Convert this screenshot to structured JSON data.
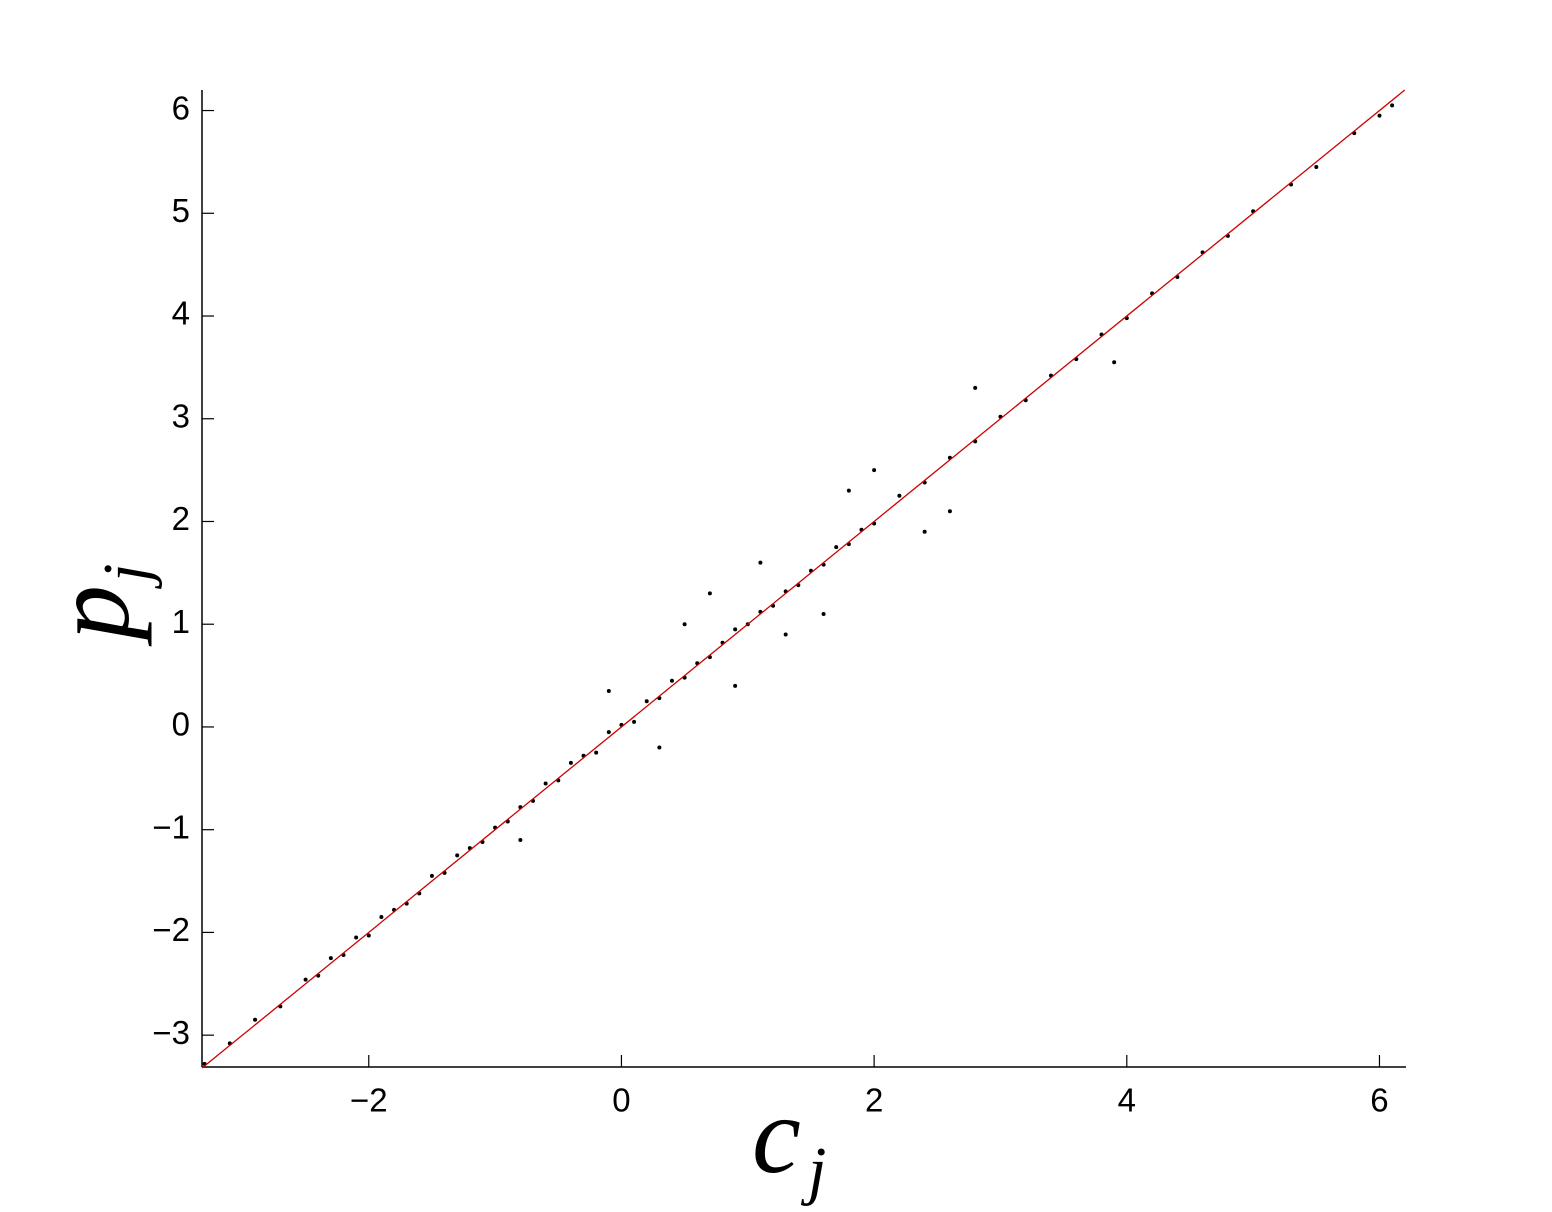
{
  "chart_data": {
    "type": "scatter",
    "xlabel": {
      "main": "c",
      "sub": "j"
    },
    "ylabel": {
      "main": "p",
      "sub": "j"
    },
    "xlim": [
      -3.32,
      6.21
    ],
    "ylim": [
      -3.31,
      6.2
    ],
    "xticks": [
      {
        "value": -2,
        "label": "−2"
      },
      0,
      2,
      4,
      6
    ],
    "yticks": [
      {
        "value": -3,
        "label": "−3"
      },
      {
        "value": -2,
        "label": "−2"
      },
      {
        "value": -1,
        "label": "−1"
      },
      0,
      1,
      2,
      3,
      4,
      5,
      6
    ],
    "grid": false,
    "series": [
      {
        "color": "#000000",
        "x": [
          -3.3,
          -3.1,
          -2.9,
          -2.7,
          -2.5,
          -2.4,
          -2.3,
          -2.2,
          -2.1,
          -2.0,
          -1.9,
          -1.8,
          -1.7,
          -1.6,
          -1.5,
          -1.4,
          -1.3,
          -1.2,
          -1.1,
          -1.0,
          -0.9,
          -0.8,
          -0.7,
          -0.6,
          -0.5,
          -0.4,
          -0.3,
          -0.2,
          -0.1,
          0.0,
          0.1,
          0.2,
          0.3,
          0.4,
          0.5,
          0.6,
          0.7,
          0.8,
          0.9,
          1.0,
          1.1,
          1.2,
          1.3,
          1.4,
          1.5,
          1.6,
          1.7,
          1.8,
          1.9,
          2.0,
          2.2,
          2.4,
          2.6,
          2.8,
          3.0,
          3.2,
          3.4,
          3.6,
          3.8,
          4.0,
          4.2,
          4.4,
          4.6,
          4.8,
          5.0,
          5.3,
          5.5,
          5.8,
          6.0,
          6.1,
          0.5,
          0.9,
          1.1,
          1.6,
          2.0,
          2.4,
          0.3,
          -0.1,
          2.8,
          1.3,
          0.7,
          3.9,
          -0.8,
          1.8,
          2.6
        ],
        "values": [
          -3.28,
          -3.08,
          -2.85,
          -2.72,
          -2.46,
          -2.42,
          -2.25,
          -2.22,
          -2.05,
          -2.03,
          -1.85,
          -1.78,
          -1.72,
          -1.62,
          -1.45,
          -1.42,
          -1.25,
          -1.18,
          -1.12,
          -0.98,
          -0.92,
          -0.78,
          -0.72,
          -0.55,
          -0.52,
          -0.35,
          -0.28,
          -0.25,
          -0.05,
          0.02,
          0.05,
          0.25,
          0.28,
          0.45,
          0.48,
          0.62,
          0.68,
          0.82,
          0.95,
          1.0,
          1.12,
          1.18,
          1.32,
          1.38,
          1.52,
          1.58,
          1.75,
          1.78,
          1.92,
          1.98,
          2.25,
          2.38,
          2.62,
          2.78,
          3.02,
          3.18,
          3.42,
          3.58,
          3.82,
          3.98,
          4.22,
          4.38,
          4.62,
          4.78,
          5.02,
          5.28,
          5.45,
          5.78,
          5.95,
          6.05,
          1.0,
          0.4,
          1.6,
          1.1,
          2.5,
          1.9,
          -0.2,
          0.35,
          3.3,
          0.9,
          1.3,
          3.55,
          -1.1,
          2.3,
          2.1
        ]
      },
      {
        "type": "line",
        "color": "#cc0000",
        "x": [
          -3.32,
          6.2
        ],
        "values": [
          -3.32,
          6.2
        ]
      }
    ]
  }
}
